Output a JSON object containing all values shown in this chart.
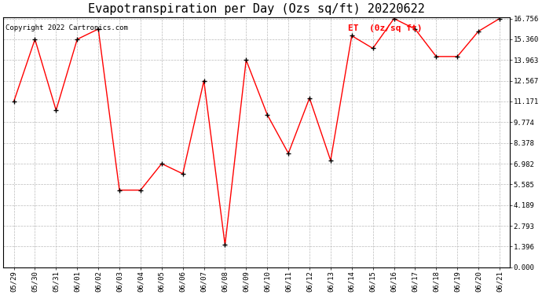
{
  "title": "Evapotranspiration per Day (Ozs sq/ft) 20220622",
  "copyright": "Copyright 2022 Cartronics.com",
  "legend_label": "ET  (0z/sq ft)",
  "dates": [
    "05/29",
    "05/30",
    "05/31",
    "06/01",
    "06/02",
    "06/03",
    "06/04",
    "06/05",
    "06/06",
    "06/07",
    "06/08",
    "06/09",
    "06/10",
    "06/11",
    "06/12",
    "06/13",
    "06/14",
    "06/15",
    "06/16",
    "06/17",
    "06/18",
    "06/19",
    "06/20",
    "06/21"
  ],
  "values": [
    11.171,
    15.36,
    10.578,
    15.36,
    16.052,
    5.2,
    5.2,
    6.982,
    6.3,
    12.567,
    1.5,
    13.963,
    10.28,
    7.68,
    11.4,
    7.2,
    15.6,
    14.75,
    16.756,
    16.052,
    14.2,
    14.2,
    15.9,
    16.756
  ],
  "line_color": "red",
  "marker_color": "black",
  "background_color": "white",
  "grid_color": "#bbbbbb",
  "yticks": [
    0.0,
    1.396,
    2.793,
    4.189,
    5.585,
    6.982,
    8.378,
    9.774,
    11.171,
    12.567,
    13.963,
    15.36,
    16.756
  ],
  "ymin": 0.0,
  "ymax": 16.756,
  "title_fontsize": 11,
  "tick_fontsize": 6.5,
  "legend_fontsize": 8,
  "copyright_fontsize": 6.5
}
